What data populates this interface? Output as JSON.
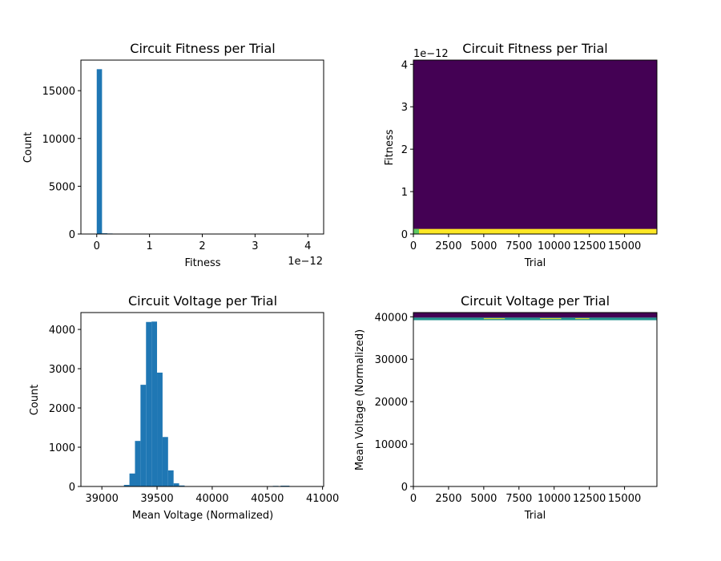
{
  "colors": {
    "hist": "#1f77b4",
    "viridis_low": "#440154",
    "viridis_mid": "#21918c",
    "viridis_midlight": "#5ec962",
    "viridis_high": "#fde725"
  },
  "chart_data": [
    {
      "type": "bar",
      "title": "Circuit Fitness per Trial",
      "xlabel": "Fitness",
      "ylabel": "Count",
      "offset_text": "1e−12",
      "xlim": [
        -0.3,
        4.3
      ],
      "ylim": [
        0,
        18200
      ],
      "xticks": [
        0,
        1,
        2,
        3,
        4
      ],
      "yticks": [
        0,
        5000,
        10000,
        15000
      ],
      "bin_edges": [
        0.0,
        0.1,
        0.2,
        0.3,
        0.4,
        0.5,
        0.6
      ],
      "values": [
        17250,
        80,
        55,
        40,
        35,
        25
      ]
    },
    {
      "type": "heatmap",
      "title": "Circuit Fitness per Trial",
      "xlabel": "Trial",
      "ylabel": "Fitness",
      "offset_text": "1e−12",
      "xlim": [
        0,
        17300
      ],
      "ylim": [
        0,
        4.1
      ],
      "xticks": [
        0,
        2500,
        5000,
        7500,
        10000,
        12500,
        15000
      ],
      "yticks": [
        0,
        1,
        2,
        3,
        4
      ],
      "background": "low",
      "bands": [
        {
          "y": [
            0,
            0.12
          ],
          "x": [
            0,
            17300
          ],
          "level": "high"
        },
        {
          "y": [
            0,
            0.12
          ],
          "x": [
            0,
            400
          ],
          "level": "midlight"
        }
      ]
    },
    {
      "type": "bar",
      "title": "Circuit Voltage per Trial",
      "xlabel": "Mean Voltage (Normalized)",
      "ylabel": "Count",
      "xlim": [
        38810,
        41010
      ],
      "ylim": [
        0,
        4430
      ],
      "xticks": [
        39000,
        39500,
        40000,
        40500,
        41000
      ],
      "yticks": [
        0,
        1000,
        2000,
        3000,
        4000
      ],
      "bin_edges": [
        39200,
        39250,
        39300,
        39350,
        39400,
        39450,
        39500,
        39550,
        39600,
        39650,
        39700,
        39750
      ],
      "values": [
        40,
        330,
        1160,
        2590,
        4190,
        4200,
        2900,
        1260,
        410,
        80,
        25
      ],
      "outliers": [
        {
          "x": [
            40550,
            40600
          ],
          "value": 15
        },
        {
          "x": [
            40620,
            40700
          ],
          "value": 20
        }
      ]
    },
    {
      "type": "heatmap",
      "title": "Circuit Voltage per Trial",
      "xlabel": "Trial",
      "ylabel": "Mean Voltage (Normalized)",
      "xlim": [
        0,
        17300
      ],
      "ylim": [
        0,
        41000
      ],
      "xticks": [
        0,
        2500,
        5000,
        7500,
        10000,
        12500,
        15000
      ],
      "yticks": [
        0,
        10000,
        20000,
        30000,
        40000
      ],
      "background": "none",
      "bands": [
        {
          "y": [
            39800,
            41000
          ],
          "x": [
            0,
            17300
          ],
          "level": "low"
        },
        {
          "y": [
            39200,
            39800
          ],
          "x": [
            0,
            17300
          ],
          "level": "mid"
        },
        {
          "y": [
            39550,
            39650
          ],
          "x": [
            5000,
            6500
          ],
          "level": "high"
        },
        {
          "y": [
            39550,
            39650
          ],
          "x": [
            9000,
            10500
          ],
          "level": "high"
        },
        {
          "y": [
            39550,
            39650
          ],
          "x": [
            11500,
            12500
          ],
          "level": "high"
        }
      ]
    }
  ]
}
